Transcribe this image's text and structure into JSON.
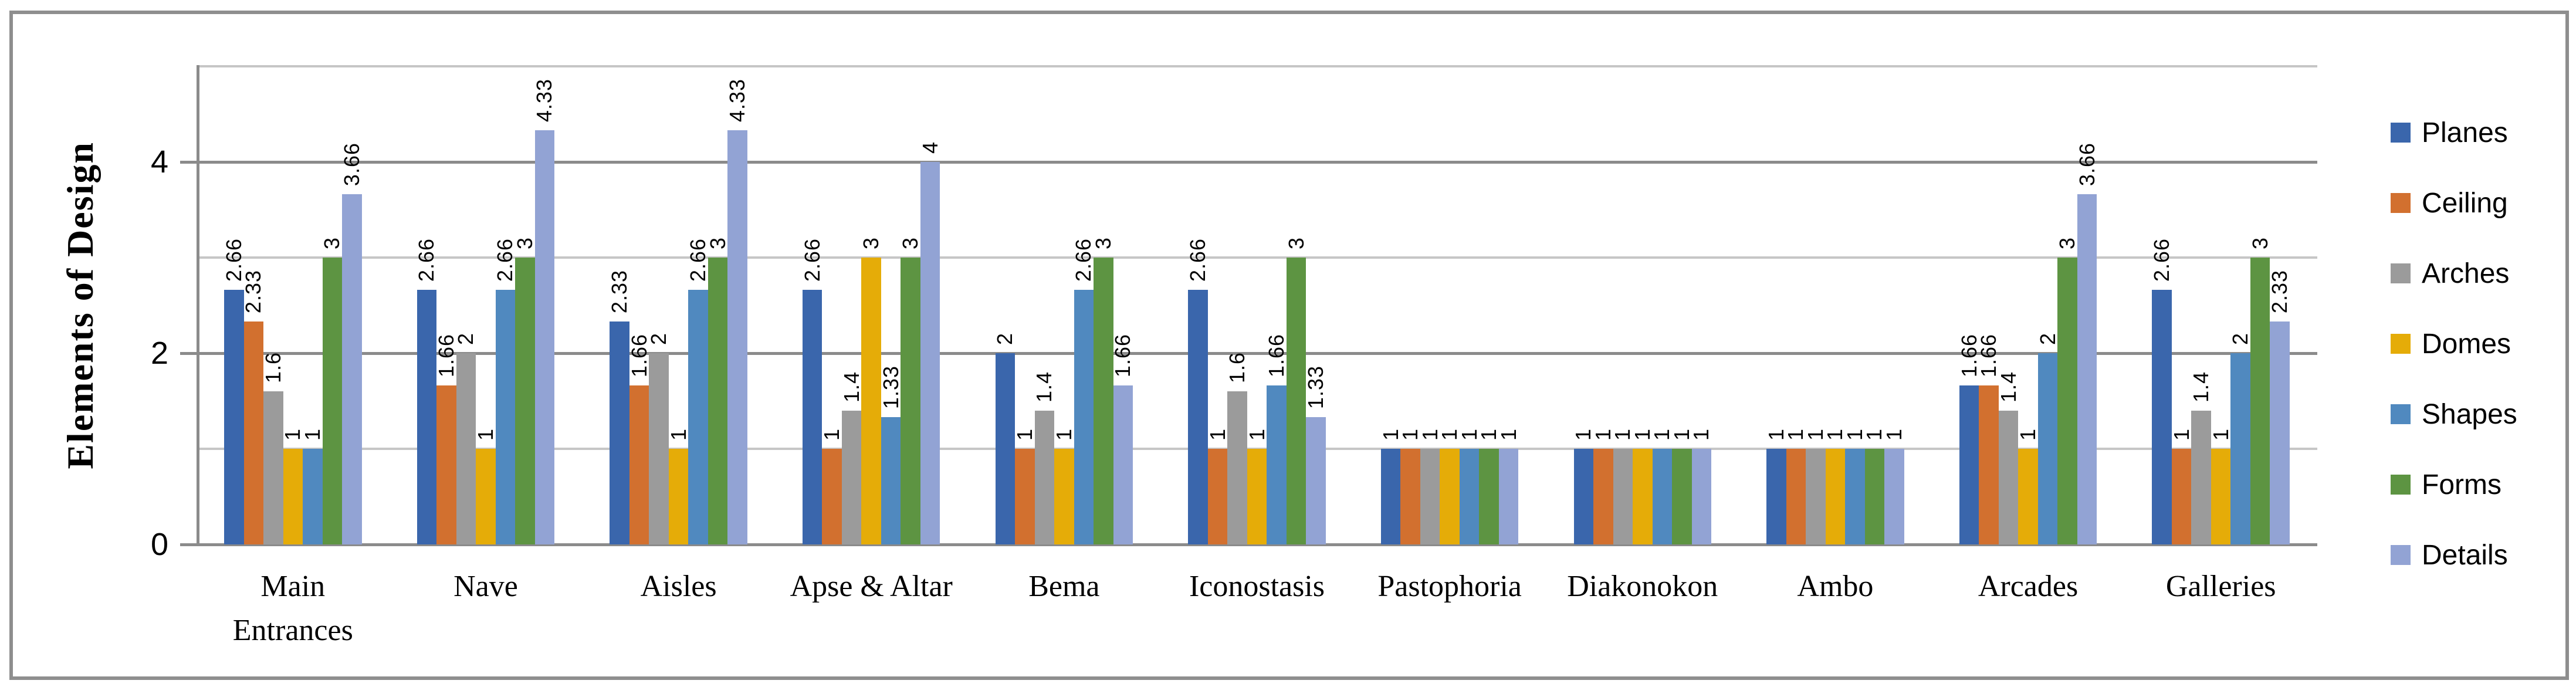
{
  "figure": {
    "y_axis_title": "Elements of Design"
  },
  "chart_data": {
    "type": "bar",
    "title": "",
    "xlabel": "",
    "ylabel": "Elements of Design",
    "ylim": [
      0,
      5
    ],
    "yticks": [
      0,
      2,
      4
    ],
    "grid": {
      "major_lines": [
        0,
        2,
        4
      ],
      "minor_lines": [
        1,
        3,
        5
      ],
      "grid_on": true
    },
    "legend_position": "right",
    "data_labels": "rotated-vertical",
    "categories": [
      "Main\nEntrances",
      "Nave",
      "Aisles",
      "Apse & Altar",
      "Bema",
      "Iconostasis",
      "Pastophoria",
      "Diakonokon",
      "Ambo",
      "Arcades",
      "Galleries"
    ],
    "series": [
      {
        "name": "Planes",
        "color": "#3A66AC",
        "values": [
          2.66,
          2.66,
          2.33,
          2.66,
          2,
          2.66,
          1,
          1,
          1,
          1.66,
          2.66
        ]
      },
      {
        "name": "Ceiling",
        "color": "#D2702F",
        "values": [
          2.33,
          1.66,
          1.66,
          1,
          1,
          1,
          1,
          1,
          1,
          1.66,
          1
        ]
      },
      {
        "name": "Arches",
        "color": "#9B9B9B",
        "values": [
          1.6,
          2,
          2,
          1.4,
          1.4,
          1.6,
          1,
          1,
          1,
          1.4,
          1.4
        ]
      },
      {
        "name": "Domes",
        "color": "#E5AC08",
        "values": [
          1,
          1,
          1,
          3,
          1,
          1,
          1,
          1,
          1,
          1,
          1
        ]
      },
      {
        "name": "Shapes",
        "color": "#5089BF",
        "values": [
          1,
          2.66,
          2.66,
          1.33,
          2.66,
          1.66,
          1,
          1,
          1,
          2,
          2
        ]
      },
      {
        "name": "Forms",
        "color": "#5D9442",
        "values": [
          3,
          3,
          3,
          3,
          3,
          3,
          1,
          1,
          1,
          3,
          3
        ]
      },
      {
        "name": "Details",
        "color": "#92A3D4",
        "values": [
          3.66,
          4.33,
          4.33,
          4,
          1.66,
          1.33,
          1,
          1,
          1,
          3.66,
          2.33
        ]
      }
    ],
    "colors": {
      "grid_major": "#8B8B8B",
      "grid_minor": "#C6C6C6",
      "axis": "#8B8B8B",
      "figure_border": "#8E8E8E",
      "label_text": "#000000"
    }
  }
}
